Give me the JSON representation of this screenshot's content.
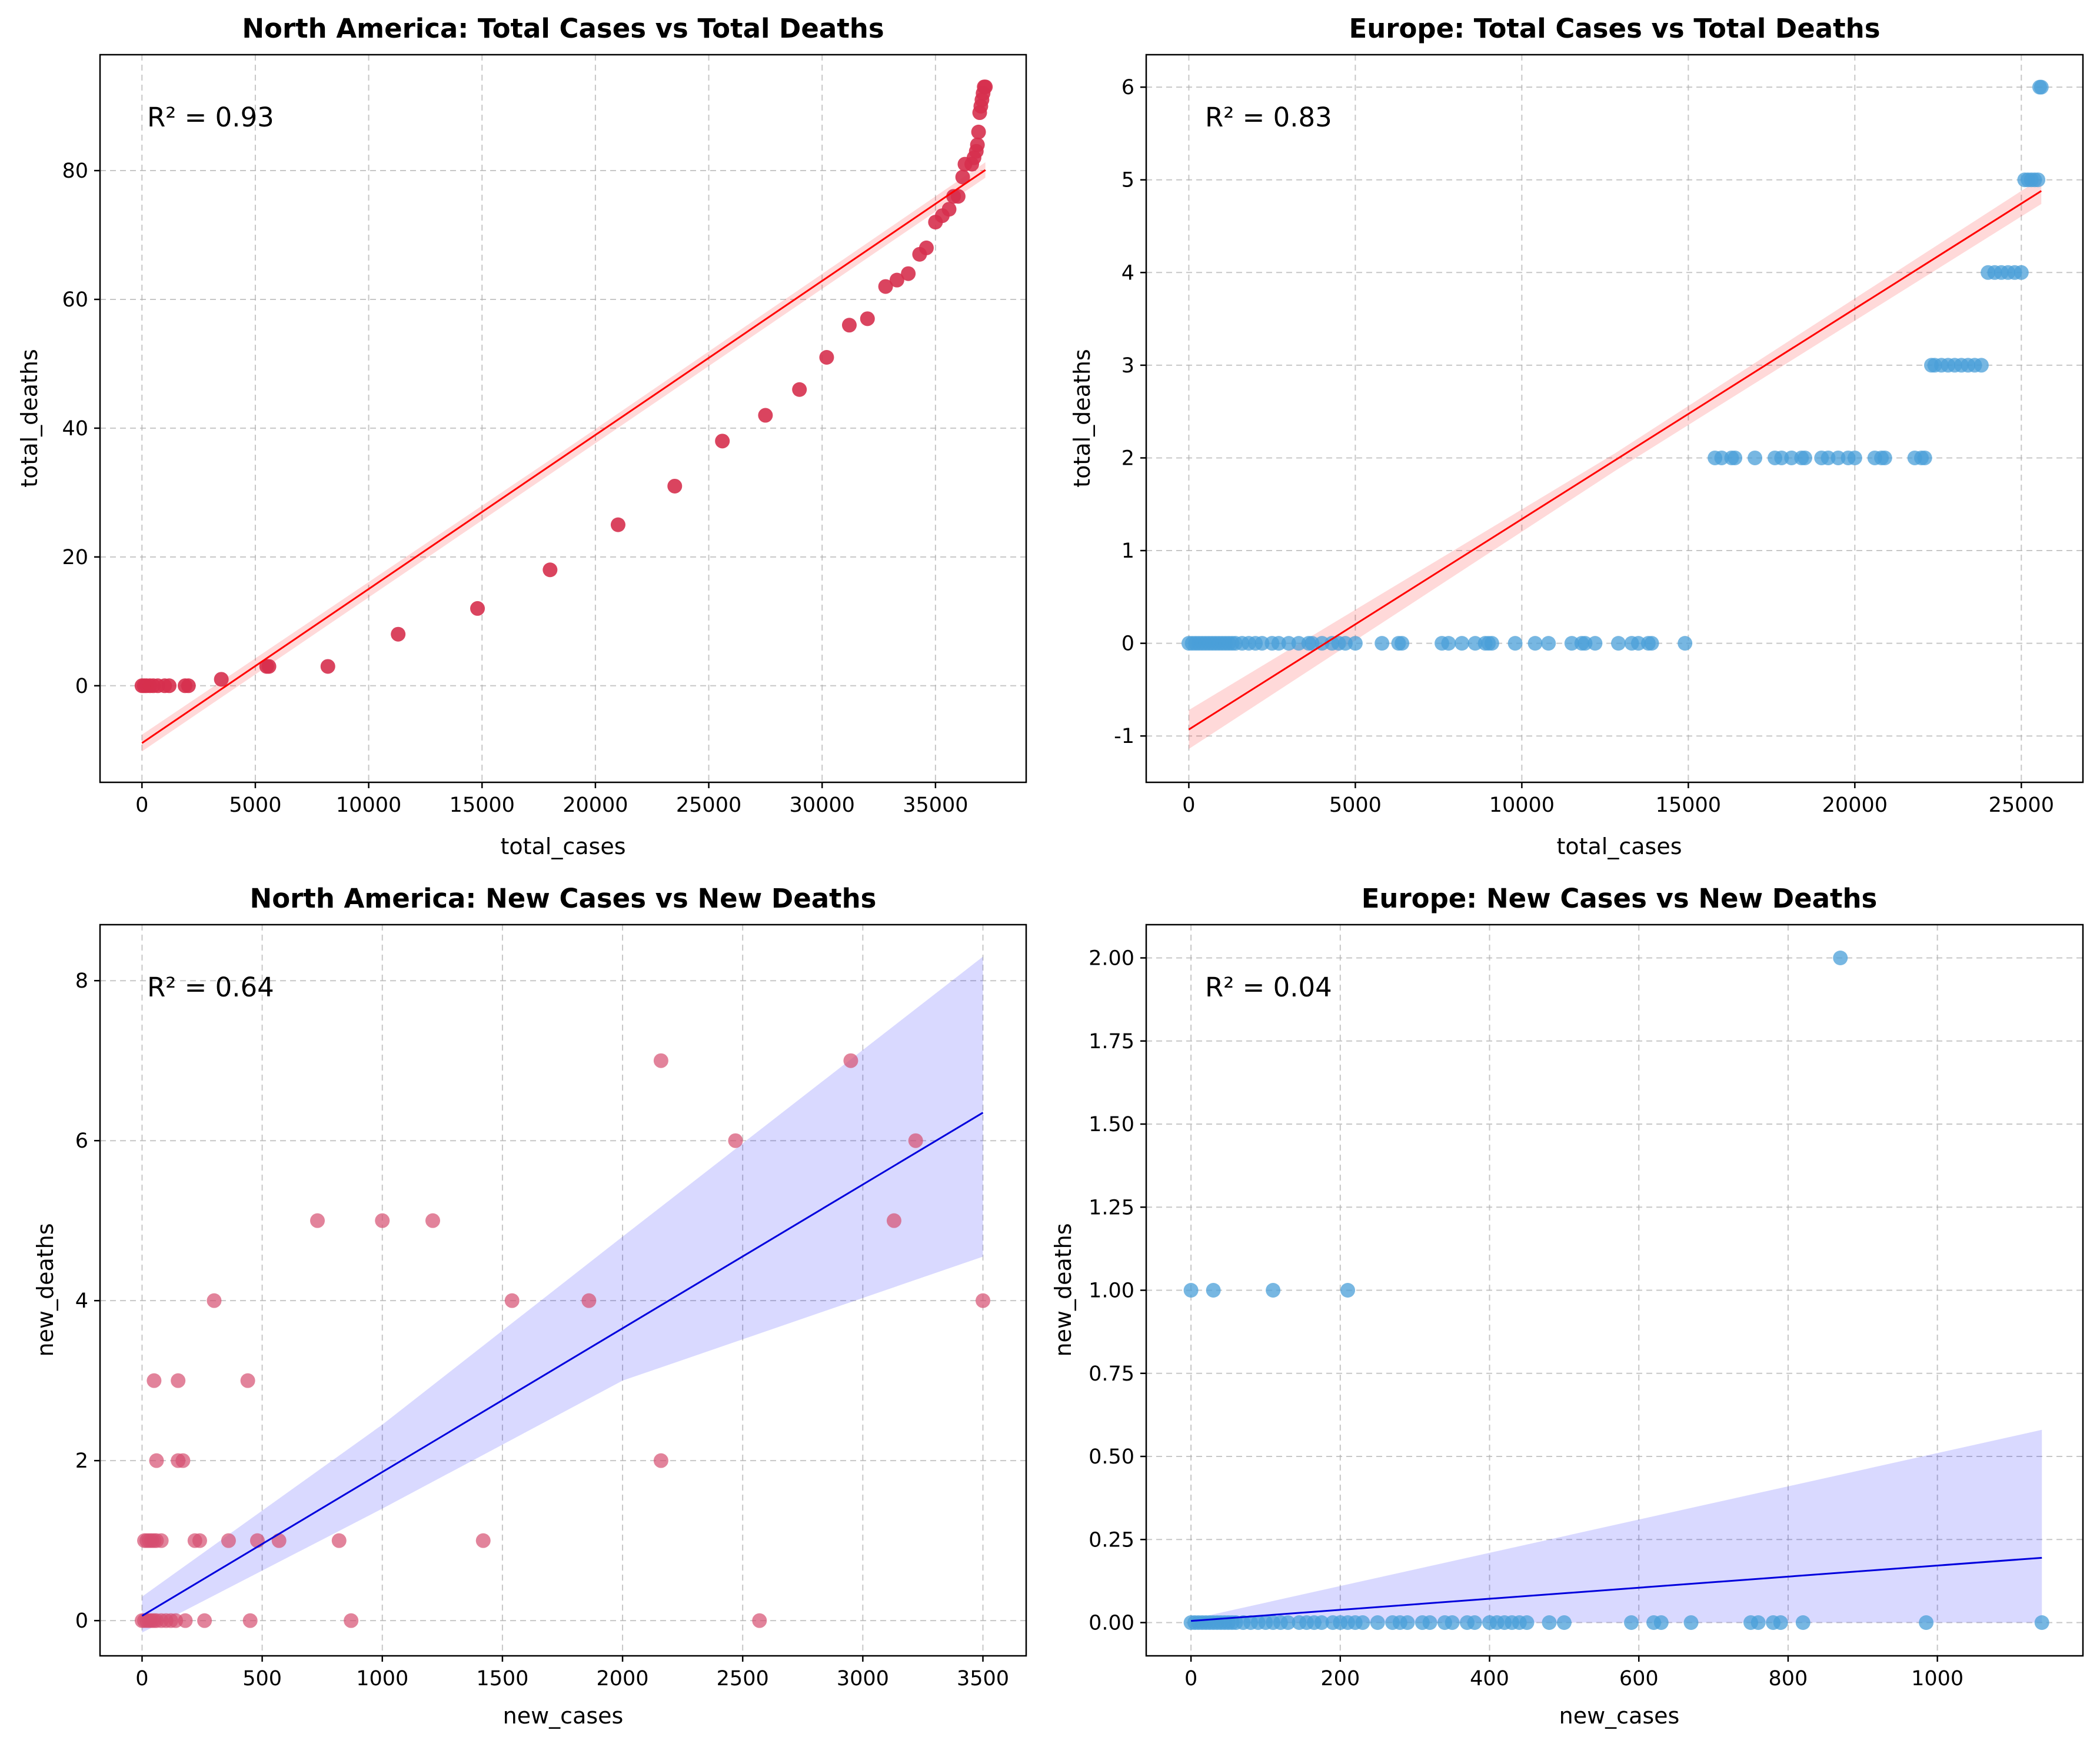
{
  "chart_data": [
    {
      "type": "scatter",
      "title": "North America: Total Cases vs Total Deaths",
      "xlabel": "total_cases",
      "ylabel": "total_deaths",
      "annotation": "R² = 0.93",
      "xlim": [
        -1850,
        39000
      ],
      "ylim": [
        -15,
        98
      ],
      "xticks": [
        0,
        5000,
        10000,
        15000,
        20000,
        25000,
        30000,
        35000
      ],
      "yticks": [
        0,
        20,
        40,
        60,
        80
      ],
      "grid": true,
      "point_color": "#d6304e",
      "point_alpha": 0.9,
      "fit_color": "#ff0000",
      "band_color": "#ff0000",
      "points": [
        [
          0,
          0
        ],
        [
          100,
          0
        ],
        [
          200,
          0
        ],
        [
          350,
          0
        ],
        [
          500,
          0
        ],
        [
          700,
          0
        ],
        [
          1000,
          0
        ],
        [
          1200,
          0
        ],
        [
          1900,
          0
        ],
        [
          2050,
          0
        ],
        [
          3500,
          1
        ],
        [
          5500,
          3
        ],
        [
          5600,
          3
        ],
        [
          8200,
          3
        ],
        [
          11300,
          8
        ],
        [
          14800,
          12
        ],
        [
          18000,
          18
        ],
        [
          21000,
          25
        ],
        [
          23500,
          31
        ],
        [
          25600,
          38
        ],
        [
          27500,
          42
        ],
        [
          29000,
          46
        ],
        [
          30200,
          51
        ],
        [
          31200,
          56
        ],
        [
          32000,
          57
        ],
        [
          32800,
          62
        ],
        [
          33300,
          63
        ],
        [
          33800,
          64
        ],
        [
          34300,
          67
        ],
        [
          34600,
          68
        ],
        [
          35000,
          72
        ],
        [
          35300,
          73
        ],
        [
          35600,
          74
        ],
        [
          35800,
          76
        ],
        [
          36000,
          76
        ],
        [
          36200,
          79
        ],
        [
          36300,
          81
        ],
        [
          36600,
          81
        ],
        [
          36700,
          82
        ],
        [
          36800,
          83
        ],
        [
          36850,
          84
        ],
        [
          36900,
          86
        ],
        [
          36950,
          89
        ],
        [
          37000,
          90
        ],
        [
          37050,
          91
        ],
        [
          37100,
          92
        ],
        [
          37150,
          93
        ],
        [
          37200,
          93
        ]
      ],
      "fit_line": [
        [
          0,
          -8.9
        ],
        [
          37200,
          80.1
        ]
      ],
      "band": {
        "x": [
          0,
          18600,
          37200
        ],
        "upper": [
          -7.6,
          36.5,
          81.3
        ],
        "lower": [
          -10.2,
          34.3,
          78.9
        ]
      }
    },
    {
      "type": "scatter",
      "title": "Europe: Total Cases vs Total Deaths",
      "xlabel": "total_cases",
      "ylabel": "total_deaths",
      "annotation": "R² = 0.83",
      "xlim": [
        -1280,
        26850
      ],
      "ylim": [
        -1.5,
        6.35
      ],
      "xticks": [
        0,
        5000,
        10000,
        15000,
        20000,
        25000
      ],
      "yticks": [
        -1,
        0,
        1,
        2,
        3,
        4,
        5,
        6
      ],
      "grid": true,
      "point_color": "#4a9fd8",
      "point_alpha": 0.75,
      "fit_color": "#ff0000",
      "band_color": "#ff0000",
      "points": [
        [
          0,
          0
        ],
        [
          100,
          0
        ],
        [
          200,
          0
        ],
        [
          300,
          0
        ],
        [
          400,
          0
        ],
        [
          500,
          0
        ],
        [
          600,
          0
        ],
        [
          700,
          0
        ],
        [
          800,
          0
        ],
        [
          900,
          0
        ],
        [
          1000,
          0
        ],
        [
          1100,
          0
        ],
        [
          1200,
          0
        ],
        [
          1300,
          0
        ],
        [
          1400,
          0
        ],
        [
          1600,
          0
        ],
        [
          1800,
          0
        ],
        [
          2000,
          0
        ],
        [
          2200,
          0
        ],
        [
          2500,
          0
        ],
        [
          2700,
          0
        ],
        [
          3000,
          0
        ],
        [
          3300,
          0
        ],
        [
          3600,
          0
        ],
        [
          3700,
          0
        ],
        [
          4000,
          0
        ],
        [
          4300,
          0
        ],
        [
          4500,
          0
        ],
        [
          4700,
          0
        ],
        [
          5000,
          0
        ],
        [
          5800,
          0
        ],
        [
          6300,
          0
        ],
        [
          6400,
          0
        ],
        [
          7600,
          0
        ],
        [
          7800,
          0
        ],
        [
          8200,
          0
        ],
        [
          8600,
          0
        ],
        [
          8900,
          0
        ],
        [
          9000,
          0
        ],
        [
          9100,
          0
        ],
        [
          9800,
          0
        ],
        [
          10400,
          0
        ],
        [
          10800,
          0
        ],
        [
          11500,
          0
        ],
        [
          11800,
          0
        ],
        [
          11900,
          0
        ],
        [
          12200,
          0
        ],
        [
          12900,
          0
        ],
        [
          13300,
          0
        ],
        [
          13500,
          0
        ],
        [
          13800,
          0
        ],
        [
          13900,
          0
        ],
        [
          14900,
          0
        ],
        [
          15800,
          2
        ],
        [
          16000,
          2
        ],
        [
          16300,
          2
        ],
        [
          16400,
          2
        ],
        [
          17000,
          2
        ],
        [
          17600,
          2
        ],
        [
          17800,
          2
        ],
        [
          18100,
          2
        ],
        [
          18400,
          2
        ],
        [
          18500,
          2
        ],
        [
          19000,
          2
        ],
        [
          19200,
          2
        ],
        [
          19500,
          2
        ],
        [
          19800,
          2
        ],
        [
          20000,
          2
        ],
        [
          20600,
          2
        ],
        [
          20800,
          2
        ],
        [
          20900,
          2
        ],
        [
          21800,
          2
        ],
        [
          22000,
          2
        ],
        [
          22100,
          2
        ],
        [
          22300,
          3
        ],
        [
          22400,
          3
        ],
        [
          22600,
          3
        ],
        [
          22800,
          3
        ],
        [
          23000,
          3
        ],
        [
          23200,
          3
        ],
        [
          23400,
          3
        ],
        [
          23600,
          3
        ],
        [
          23800,
          3
        ],
        [
          24000,
          4
        ],
        [
          24200,
          4
        ],
        [
          24400,
          4
        ],
        [
          24600,
          4
        ],
        [
          24800,
          4
        ],
        [
          25000,
          4
        ],
        [
          25100,
          5
        ],
        [
          25200,
          5
        ],
        [
          25300,
          5
        ],
        [
          25400,
          5
        ],
        [
          25500,
          5
        ],
        [
          25550,
          6
        ],
        [
          25600,
          6
        ]
      ],
      "fit_line": [
        [
          0,
          -0.93
        ],
        [
          25600,
          4.88
        ]
      ],
      "band": {
        "x": [
          0,
          12800,
          25600
        ],
        "upper": [
          -0.72,
          2.05,
          5.02
        ],
        "lower": [
          -1.14,
          1.86,
          4.74
        ]
      }
    },
    {
      "type": "scatter",
      "title": "North America: New Cases vs New Deaths",
      "xlabel": "new_cases",
      "ylabel": "new_deaths",
      "annotation": "R² = 0.64",
      "xlim": [
        -175,
        3680
      ],
      "ylim": [
        -0.44,
        8.7
      ],
      "xticks": [
        0,
        500,
        1000,
        1500,
        2000,
        2500,
        3000,
        3500
      ],
      "yticks": [
        0,
        2,
        4,
        6,
        8
      ],
      "grid": true,
      "point_color": "#d64f70",
      "point_alpha": 0.7,
      "fit_color": "#0000dd",
      "band_color": "#0000ff",
      "points": [
        [
          0,
          0
        ],
        [
          10,
          0
        ],
        [
          20,
          0
        ],
        [
          30,
          0
        ],
        [
          40,
          0
        ],
        [
          50,
          0
        ],
        [
          60,
          0
        ],
        [
          80,
          0
        ],
        [
          100,
          0
        ],
        [
          120,
          0
        ],
        [
          140,
          0
        ],
        [
          180,
          0
        ],
        [
          260,
          0
        ],
        [
          450,
          0
        ],
        [
          870,
          0
        ],
        [
          2570,
          0
        ],
        [
          10,
          1
        ],
        [
          20,
          1
        ],
        [
          30,
          1
        ],
        [
          40,
          1
        ],
        [
          50,
          1
        ],
        [
          60,
          1
        ],
        [
          80,
          1
        ],
        [
          220,
          1
        ],
        [
          240,
          1
        ],
        [
          360,
          1
        ],
        [
          480,
          1
        ],
        [
          570,
          1
        ],
        [
          820,
          1
        ],
        [
          1420,
          1
        ],
        [
          60,
          2
        ],
        [
          150,
          2
        ],
        [
          170,
          2
        ],
        [
          2160,
          2
        ],
        [
          50,
          3
        ],
        [
          150,
          3
        ],
        [
          440,
          3
        ],
        [
          300,
          4
        ],
        [
          1540,
          4
        ],
        [
          1860,
          4
        ],
        [
          3500,
          4
        ],
        [
          730,
          5
        ],
        [
          1000,
          5
        ],
        [
          1210,
          5
        ],
        [
          3130,
          5
        ],
        [
          2470,
          6
        ],
        [
          3220,
          6
        ],
        [
          2160,
          7
        ],
        [
          2950,
          7
        ]
      ],
      "fit_line": [
        [
          0,
          0.06
        ],
        [
          3500,
          6.35
        ]
      ],
      "band": {
        "x": [
          0,
          1000,
          2000,
          3500
        ],
        "upper": [
          0.3,
          2.45,
          4.8,
          8.3
        ],
        "lower": [
          -0.15,
          1.4,
          3.0,
          4.55
        ]
      }
    },
    {
      "type": "scatter",
      "title": "Europe: New Cases vs New Deaths",
      "xlabel": "new_cases",
      "ylabel": "new_deaths",
      "annotation": "R² = 0.04",
      "xlim": [
        -60,
        1195
      ],
      "ylim": [
        -0.1,
        2.1
      ],
      "xticks": [
        0,
        200,
        400,
        600,
        800,
        1000
      ],
      "yticks": [
        "0.00",
        "0.25",
        "0.50",
        "0.75",
        "1.00",
        "1.25",
        "1.50",
        "1.75",
        "2.00"
      ],
      "grid": true,
      "point_color": "#4a9fd8",
      "point_alpha": 0.75,
      "fit_color": "#0000dd",
      "band_color": "#0000ff",
      "points": [
        [
          0,
          0
        ],
        [
          5,
          0
        ],
        [
          10,
          0
        ],
        [
          15,
          0
        ],
        [
          20,
          0
        ],
        [
          25,
          0
        ],
        [
          30,
          0
        ],
        [
          35,
          0
        ],
        [
          40,
          0
        ],
        [
          45,
          0
        ],
        [
          50,
          0
        ],
        [
          55,
          0
        ],
        [
          60,
          0
        ],
        [
          70,
          0
        ],
        [
          80,
          0
        ],
        [
          90,
          0
        ],
        [
          100,
          0
        ],
        [
          110,
          0
        ],
        [
          120,
          0
        ],
        [
          130,
          0
        ],
        [
          145,
          0
        ],
        [
          155,
          0
        ],
        [
          165,
          0
        ],
        [
          175,
          0
        ],
        [
          190,
          0
        ],
        [
          200,
          0
        ],
        [
          210,
          0
        ],
        [
          220,
          0
        ],
        [
          230,
          0
        ],
        [
          250,
          0
        ],
        [
          270,
          0
        ],
        [
          280,
          0
        ],
        [
          290,
          0
        ],
        [
          310,
          0
        ],
        [
          320,
          0
        ],
        [
          340,
          0
        ],
        [
          350,
          0
        ],
        [
          370,
          0
        ],
        [
          380,
          0
        ],
        [
          400,
          0
        ],
        [
          410,
          0
        ],
        [
          420,
          0
        ],
        [
          430,
          0
        ],
        [
          440,
          0
        ],
        [
          450,
          0
        ],
        [
          480,
          0
        ],
        [
          500,
          0
        ],
        [
          590,
          0
        ],
        [
          620,
          0
        ],
        [
          630,
          0
        ],
        [
          670,
          0
        ],
        [
          750,
          0
        ],
        [
          760,
          0
        ],
        [
          780,
          0
        ],
        [
          790,
          0
        ],
        [
          820,
          0
        ],
        [
          985,
          0
        ],
        [
          1140,
          0
        ],
        [
          0,
          1
        ],
        [
          30,
          1
        ],
        [
          110,
          1
        ],
        [
          210,
          1
        ],
        [
          870,
          2
        ]
      ],
      "fit_line": [
        [
          0,
          0.005
        ],
        [
          1140,
          0.195
        ]
      ],
      "band": {
        "x": [
          0,
          1140
        ],
        "upper": [
          0.01,
          0.58
        ],
        "lower": [
          0.0,
          0.0
        ]
      }
    }
  ]
}
